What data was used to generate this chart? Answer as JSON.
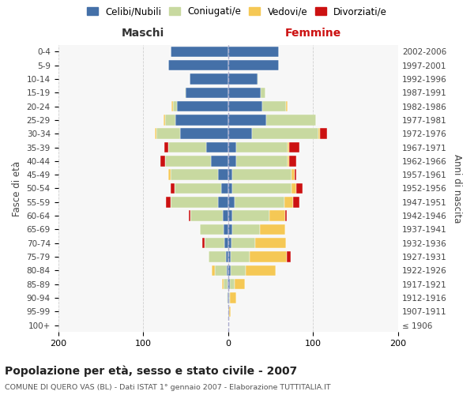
{
  "age_groups": [
    "100+",
    "95-99",
    "90-94",
    "85-89",
    "80-84",
    "75-79",
    "70-74",
    "65-69",
    "60-64",
    "55-59",
    "50-54",
    "45-49",
    "40-44",
    "35-39",
    "30-34",
    "25-29",
    "20-24",
    "15-19",
    "10-14",
    "5-9",
    "0-4"
  ],
  "birth_years": [
    "≤ 1906",
    "1907-1911",
    "1912-1916",
    "1917-1921",
    "1922-1926",
    "1927-1931",
    "1932-1936",
    "1937-1941",
    "1942-1946",
    "1947-1951",
    "1952-1956",
    "1957-1961",
    "1962-1966",
    "1967-1971",
    "1972-1976",
    "1977-1981",
    "1982-1986",
    "1987-1991",
    "1992-1996",
    "1997-2001",
    "2002-2006"
  ],
  "maschi_celibi": [
    0,
    0,
    1,
    1,
    2,
    3,
    4,
    5,
    6,
    12,
    8,
    12,
    20,
    26,
    56,
    62,
    60,
    50,
    45,
    70,
    68
  ],
  "maschi_coniugati": [
    0,
    0,
    1,
    4,
    14,
    20,
    24,
    28,
    38,
    56,
    55,
    56,
    54,
    44,
    28,
    12,
    5,
    1,
    0,
    0,
    0
  ],
  "maschi_vedovi": [
    0,
    0,
    0,
    2,
    3,
    0,
    0,
    0,
    0,
    0,
    0,
    2,
    0,
    0,
    2,
    2,
    2,
    0,
    0,
    0,
    0
  ],
  "maschi_divorziati": [
    0,
    0,
    0,
    0,
    0,
    0,
    2,
    0,
    2,
    5,
    5,
    0,
    6,
    5,
    0,
    0,
    0,
    0,
    0,
    0,
    0
  ],
  "femmine_nubili": [
    0,
    1,
    1,
    2,
    3,
    3,
    4,
    5,
    5,
    8,
    5,
    5,
    10,
    10,
    28,
    45,
    40,
    38,
    35,
    60,
    60
  ],
  "femmine_coniugate": [
    0,
    0,
    1,
    6,
    18,
    22,
    28,
    32,
    44,
    58,
    70,
    70,
    60,
    60,
    78,
    58,
    28,
    6,
    1,
    0,
    0
  ],
  "femmine_vedove": [
    0,
    2,
    8,
    12,
    35,
    44,
    36,
    30,
    18,
    10,
    5,
    3,
    2,
    2,
    2,
    0,
    2,
    0,
    0,
    0,
    0
  ],
  "femmine_divorziate": [
    0,
    0,
    0,
    0,
    0,
    5,
    0,
    0,
    2,
    8,
    8,
    2,
    8,
    12,
    8,
    0,
    0,
    0,
    0,
    0,
    0
  ],
  "color_celibi": "#4470a8",
  "color_coniugati": "#c8d9a0",
  "color_vedovi": "#f5c855",
  "color_divorziati": "#cc1111",
  "title": "Popolazione per età, sesso e stato civile - 2007",
  "subtitle": "COMUNE DI QUERO VAS (BL) - Dati ISTAT 1° gennaio 2007 - Elaborazione TUTTITALIA.IT",
  "legend_labels": [
    "Celibi/Nubili",
    "Coniugati/e",
    "Vedovi/e",
    "Divorziati/e"
  ],
  "xlim": 200,
  "bg_color": "#ffffff",
  "plot_bg": "#f7f7f7",
  "grid_color": "#cccccc"
}
